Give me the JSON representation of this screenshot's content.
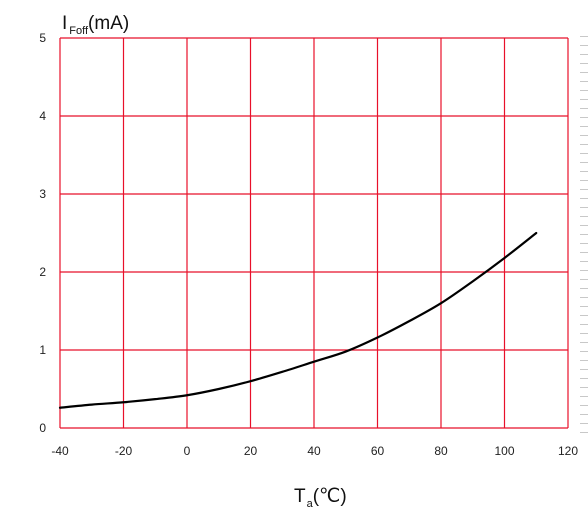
{
  "chart_data": {
    "type": "line",
    "ylabel_main": "I",
    "ylabel_sub": "Foff",
    "ylabel_unit": "(mA)",
    "xlabel_main": "T",
    "xlabel_sub": "a",
    "xlabel_unit": "(℃)",
    "xlim": [
      -40,
      120
    ],
    "ylim": [
      0,
      5
    ],
    "x_ticks": [
      -40,
      -20,
      0,
      20,
      40,
      60,
      80,
      100,
      120
    ],
    "y_ticks": [
      0,
      1,
      2,
      3,
      4,
      5
    ],
    "grid": true,
    "grid_color": "#e8102a",
    "line_color": "#000000",
    "series": [
      {
        "x": [
          -40,
          -30,
          -20,
          -10,
          0,
          10,
          20,
          30,
          40,
          50,
          60,
          70,
          80,
          90,
          100,
          110
        ],
        "y": [
          0.26,
          0.3,
          0.33,
          0.37,
          0.42,
          0.5,
          0.6,
          0.72,
          0.85,
          0.98,
          1.16,
          1.37,
          1.6,
          1.88,
          2.18,
          2.5
        ]
      }
    ]
  }
}
